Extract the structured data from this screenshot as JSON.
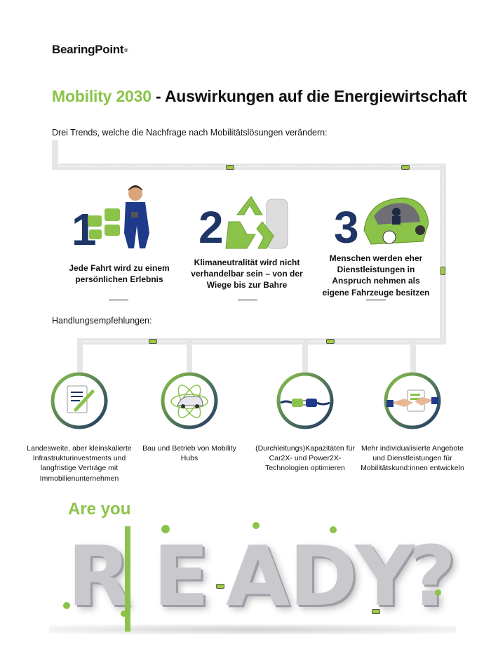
{
  "brand": {
    "name": "BearingPoint",
    "mark": "®"
  },
  "title": {
    "highlight": "Mobility 2030",
    "separator": " - ",
    "rest": "Auswirkungen auf die Energiewirtschaft"
  },
  "intro": "Drei Trends, welche die Nachfrage nach Mobilitätslösungen verändern:",
  "trends": [
    {
      "number": "1",
      "text": "Jede Fahrt wird zu einem persönlichen Erlebnis"
    },
    {
      "number": "2",
      "text": "Klimaneutralität wird nicht verhandelbar sein – von der Wiege bis zur Bahre"
    },
    {
      "number": "3",
      "text": "Menschen werden eher Dienstleistungen in Anspruch nehmen als eigene Fahrzeuge besitzen"
    }
  ],
  "recommendations_heading": "Handlungsempfehlungen:",
  "recommendations": [
    {
      "icon": "document-pencil-icon",
      "text": "Landesweite, aber kleinskalierte Infrastrukturinvestments und langfristige Verträge mit Immobilienunternehmen"
    },
    {
      "icon": "mobility-hub-car-icon",
      "text": "Bau und Betrieb von Mobility Hubs"
    },
    {
      "icon": "plug-connector-icon",
      "text": "(Durchleitungs)Kapazitäten für Car2X- und Power2X-Technologien optimieren"
    },
    {
      "icon": "handshake-document-icon",
      "text": "Mehr individualisierte Angebote und Dienstleistungen für Mobilitätskund:innen entwickeln"
    }
  ],
  "closing": {
    "are_you": "Are you",
    "ready_letters": [
      "R",
      "E",
      "A",
      "D",
      "Y",
      "?"
    ]
  },
  "colors": {
    "accent_green": "#8bc34a",
    "navy": "#1f3566",
    "road": "#e6e6e6"
  }
}
